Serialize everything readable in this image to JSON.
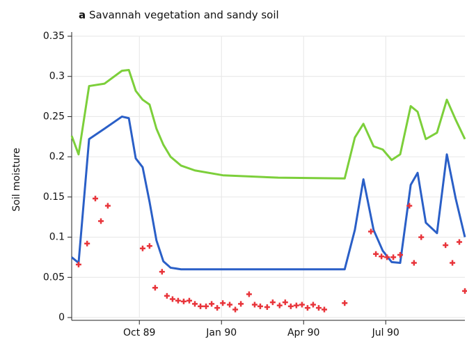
{
  "chart_data": {
    "type": "line",
    "panel_label": "a",
    "title": "Savannah vegetation and sandy soil",
    "ylabel": "Soil moisture",
    "xlim": [
      1989.544,
      1990.741
    ],
    "xticks": [
      {
        "value": 1989.75,
        "label": "Oct 89"
      },
      {
        "value": 1990.0,
        "label": "Jan 90"
      },
      {
        "value": 1990.25,
        "label": "Apr 90"
      },
      {
        "value": 1990.5,
        "label": "Jul 90"
      }
    ],
    "ylim": [
      0,
      0.35
    ],
    "yticks": [
      0,
      0.05,
      0.1,
      0.15,
      0.2,
      0.25,
      0.3,
      0.35
    ],
    "grid": true,
    "series": [
      {
        "color": "#7ccf3a",
        "x": [
          1989.544,
          1989.565,
          1989.597,
          1989.644,
          1989.697,
          1989.718,
          1989.739,
          1989.76,
          1989.781,
          1989.802,
          1989.823,
          1989.845,
          1989.877,
          1989.919,
          1990.004,
          1990.173,
          1990.375,
          1990.406,
          1990.432,
          1990.463,
          1990.491,
          1990.518,
          1990.544,
          1990.576,
          1990.597,
          1990.622,
          1990.656,
          1990.686,
          1990.713,
          1990.741
        ],
        "values": [
          0.226,
          0.203,
          0.288,
          0.291,
          0.307,
          0.308,
          0.282,
          0.271,
          0.265,
          0.235,
          0.215,
          0.2,
          0.189,
          0.183,
          0.177,
          0.174,
          0.173,
          0.224,
          0.241,
          0.213,
          0.209,
          0.196,
          0.203,
          0.263,
          0.256,
          0.222,
          0.23,
          0.271,
          0.246,
          0.222
        ]
      },
      {
        "color": "#2a5fc7",
        "x": [
          1989.544,
          1989.565,
          1989.597,
          1989.644,
          1989.697,
          1989.718,
          1989.739,
          1989.76,
          1989.781,
          1989.802,
          1989.823,
          1989.845,
          1989.877,
          1989.919,
          1990.004,
          1990.173,
          1990.375,
          1990.406,
          1990.432,
          1990.463,
          1990.491,
          1990.518,
          1990.544,
          1990.576,
          1990.597,
          1990.622,
          1990.656,
          1990.686,
          1990.713,
          1990.741
        ],
        "values": [
          0.075,
          0.068,
          0.222,
          0.235,
          0.25,
          0.248,
          0.198,
          0.187,
          0.144,
          0.096,
          0.07,
          0.062,
          0.06,
          0.06,
          0.06,
          0.06,
          0.06,
          0.109,
          0.172,
          0.109,
          0.083,
          0.069,
          0.068,
          0.165,
          0.18,
          0.118,
          0.105,
          0.203,
          0.148,
          0.1
        ]
      },
      {
        "type": "scatter",
        "color": "#e8343a",
        "x": [
          1989.565,
          1989.591,
          1989.616,
          1989.633,
          1989.654,
          1989.76,
          1989.781,
          1989.798,
          1989.819,
          1989.834,
          1989.851,
          1989.868,
          1989.885,
          1989.902,
          1989.919,
          1989.936,
          1989.953,
          1989.97,
          1989.987,
          1990.004,
          1990.025,
          1990.042,
          1990.059,
          1990.084,
          1990.101,
          1990.118,
          1990.139,
          1990.156,
          1990.177,
          1990.194,
          1990.211,
          1990.228,
          1990.245,
          1990.262,
          1990.279,
          1990.296,
          1990.313,
          1990.375,
          1990.455,
          1990.47,
          1990.487,
          1990.504,
          1990.523,
          1990.544,
          1990.572,
          1990.586,
          1990.608,
          1990.682,
          1990.703,
          1990.724,
          1990.741
        ],
        "values": [
          0.066,
          0.092,
          0.148,
          0.12,
          0.139,
          0.086,
          0.089,
          0.037,
          0.057,
          0.027,
          0.023,
          0.021,
          0.02,
          0.021,
          0.017,
          0.014,
          0.014,
          0.017,
          0.012,
          0.018,
          0.016,
          0.01,
          0.017,
          0.029,
          0.016,
          0.014,
          0.013,
          0.019,
          0.015,
          0.019,
          0.014,
          0.015,
          0.016,
          0.012,
          0.016,
          0.012,
          0.01,
          0.018,
          0.107,
          0.079,
          0.076,
          0.075,
          0.075,
          0.078,
          0.139,
          0.068,
          0.1,
          0.09,
          0.068,
          0.094,
          0.033
        ]
      }
    ]
  }
}
